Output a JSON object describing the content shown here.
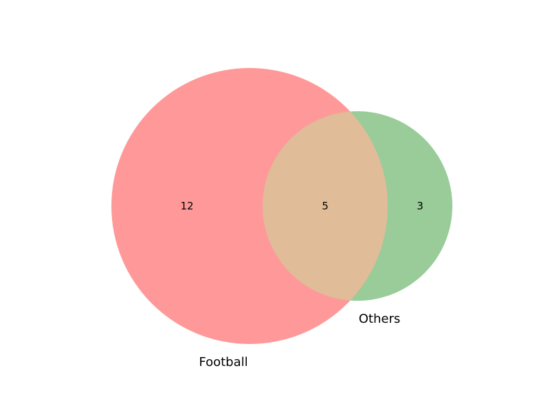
{
  "chart_data": {
    "type": "venn",
    "sets": [
      {
        "name": "Football",
        "only": 12,
        "color": "#ff9999"
      },
      {
        "name": "Others",
        "only": 3,
        "color": "#99cc99"
      }
    ],
    "intersection": 5,
    "intersection_color": "#e0bc98",
    "title": "",
    "legend": false
  }
}
